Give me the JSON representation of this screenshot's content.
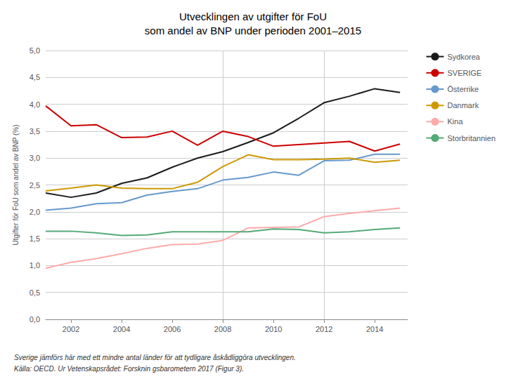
{
  "chart_data": {
    "type": "line",
    "title": "Utvecklingen av utgifter för FoU\nsom andel av BNP under perioden 2001–2015",
    "ylabel": "Utgifter för FoU som andel av BNP (%)",
    "annotations": [
      "Sverige jämförs här med ett mindre antal länder för att tydligare åskådliggöra utvecklingen.",
      "Källa: OECD. Ur Vetenskapsrådet: Forsknin gsbarometern 2017 (Figur 3)."
    ],
    "x": [
      2001,
      2002,
      2003,
      2004,
      2005,
      2006,
      2007,
      2008,
      2009,
      2010,
      2011,
      2012,
      2013,
      2014,
      2015
    ],
    "series": [
      {
        "name": "Sydkorea",
        "color": "#1a1a1a",
        "values": [
          2.35,
          2.27,
          2.35,
          2.53,
          2.63,
          2.83,
          3.0,
          3.12,
          3.29,
          3.47,
          3.74,
          4.03,
          4.15,
          4.29,
          4.22
        ]
      },
      {
        "name": "SVERIGE",
        "color": "#cc0000",
        "values": [
          3.97,
          3.6,
          3.62,
          3.38,
          3.39,
          3.5,
          3.24,
          3.5,
          3.4,
          3.22,
          3.25,
          3.28,
          3.31,
          3.13,
          3.26
        ]
      },
      {
        "name": "Österrike",
        "color": "#6699cc",
        "values": [
          2.03,
          2.07,
          2.15,
          2.17,
          2.31,
          2.38,
          2.43,
          2.59,
          2.64,
          2.74,
          2.68,
          2.95,
          2.96,
          3.07,
          3.07
        ]
      },
      {
        "name": "Danmark",
        "color": "#cc9900",
        "values": [
          2.39,
          2.44,
          2.5,
          2.44,
          2.43,
          2.43,
          2.55,
          2.84,
          3.06,
          2.97,
          2.97,
          2.98,
          3.0,
          2.92,
          2.96
        ]
      },
      {
        "name": "Kina",
        "color": "#ffaaaa",
        "values": [
          0.95,
          1.06,
          1.13,
          1.22,
          1.32,
          1.39,
          1.4,
          1.47,
          1.7,
          1.71,
          1.72,
          1.91,
          1.97,
          2.02,
          2.07
        ]
      },
      {
        "name": "Storbritannien",
        "color": "#55aa77",
        "values": [
          1.64,
          1.64,
          1.61,
          1.56,
          1.57,
          1.63,
          1.63,
          1.63,
          1.63,
          1.68,
          1.67,
          1.61,
          1.63,
          1.67,
          1.7
        ]
      }
    ],
    "vlines": [
      2008,
      2012
    ],
    "xlim": [
      2001,
      2015.3
    ],
    "xticks": [
      2002,
      2004,
      2006,
      2008,
      2010,
      2012,
      2014
    ],
    "ylim": [
      0.0,
      5.0
    ],
    "yticks": [
      {
        "value": 0.0,
        "label": "0,0"
      },
      {
        "value": 0.5,
        "label": "0,5"
      },
      {
        "value": 1.0,
        "label": "1,0"
      },
      {
        "value": 1.5,
        "label": "1,5"
      },
      {
        "value": 2.0,
        "label": "2,0"
      },
      {
        "value": 2.5,
        "label": "2,5"
      },
      {
        "value": 3.0,
        "label": "3,0"
      },
      {
        "value": 3.5,
        "label": "3,5"
      },
      {
        "value": 4.0,
        "label": "4,0"
      },
      {
        "value": 4.5,
        "label": "4,5"
      },
      {
        "value": 5.0,
        "label": "5,0"
      }
    ],
    "grid": true,
    "legend": "right"
  }
}
